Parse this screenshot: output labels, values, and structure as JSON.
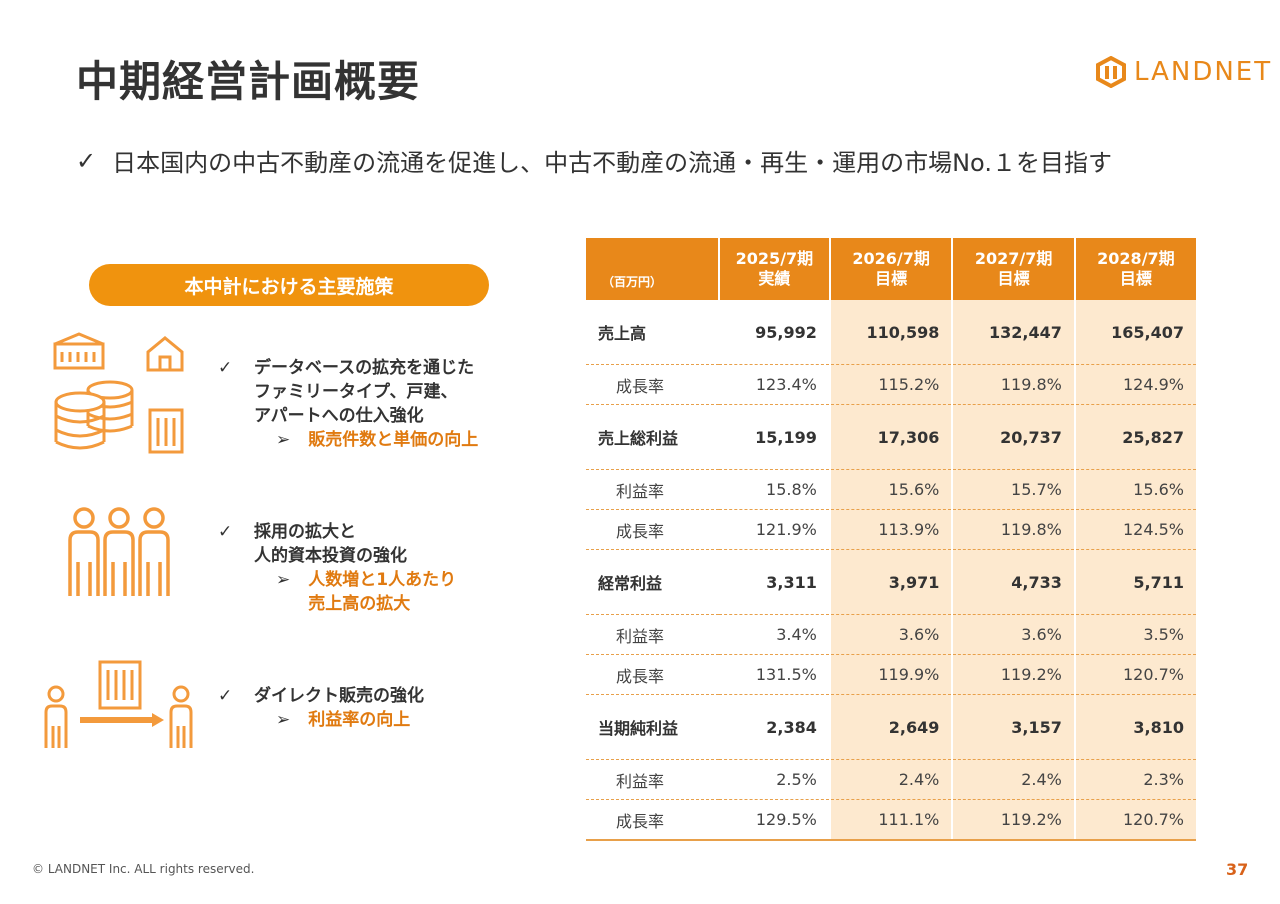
{
  "title": "中期経営計画概要",
  "logo": {
    "text": "LANDNET",
    "icon": "landnet-logo-icon"
  },
  "headline": {
    "icon": "check-icon",
    "text": "日本国内の中古不動産の流通を促進し、中古不動産の流通・再生・運用の市場No.１を目指す"
  },
  "measures": {
    "title": "本中計における主要施策",
    "items": [
      {
        "lines": [
          "データベースの拡充を通じた",
          "ファミリータイプ、戸建、",
          "アパートへの仕入強化"
        ],
        "result": [
          "販売件数と単価の向上"
        ],
        "icon": "database-houses-icon"
      },
      {
        "lines": [
          "採用の拡大と",
          "人的資本投資の強化"
        ],
        "result": [
          "人数増と1人あたり",
          "売上高の拡大"
        ],
        "icon": "people-icon"
      },
      {
        "lines": [
          "ダイレクト販売の強化"
        ],
        "result": [
          "利益率の向上"
        ],
        "icon": "direct-sales-icon"
      }
    ]
  },
  "table": {
    "unit": "（百万円）",
    "columns": [
      {
        "period": "2025/7期",
        "type": "実績"
      },
      {
        "period": "2026/7期",
        "type": "目標"
      },
      {
        "period": "2027/7期",
        "type": "目標"
      },
      {
        "period": "2028/7期",
        "type": "目標"
      }
    ],
    "rows": [
      {
        "kind": "main",
        "label": "売上高",
        "values": [
          "95,992",
          "110,598",
          "132,447",
          "165,407"
        ]
      },
      {
        "kind": "rate",
        "label": "成長率",
        "values": [
          "123.4%",
          "115.2%",
          "119.8%",
          "124.9%"
        ]
      },
      {
        "kind": "main",
        "label": "売上総利益",
        "values": [
          "15,199",
          "17,306",
          "20,737",
          "25,827"
        ]
      },
      {
        "kind": "rate",
        "label": "利益率",
        "values": [
          "15.8%",
          "15.6%",
          "15.7%",
          "15.6%"
        ]
      },
      {
        "kind": "rate",
        "label": "成長率",
        "values": [
          "121.9%",
          "113.9%",
          "119.8%",
          "124.5%"
        ]
      },
      {
        "kind": "main",
        "label": "経常利益",
        "values": [
          "3,311",
          "3,971",
          "4,733",
          "5,711"
        ]
      },
      {
        "kind": "rate",
        "label": "利益率",
        "values": [
          "3.4%",
          "3.6%",
          "3.6%",
          "3.5%"
        ]
      },
      {
        "kind": "rate",
        "label": "成長率",
        "values": [
          "131.5%",
          "119.9%",
          "119.2%",
          "120.7%"
        ]
      },
      {
        "kind": "main",
        "label": "当期純利益",
        "values": [
          "2,384",
          "2,649",
          "3,157",
          "3,810"
        ]
      },
      {
        "kind": "rate",
        "label": "利益率",
        "values": [
          "2.5%",
          "2.4%",
          "2.4%",
          "2.3%"
        ]
      },
      {
        "kind": "rate",
        "label": "成長率",
        "values": [
          "129.5%",
          "111.1%",
          "119.2%",
          "120.7%"
        ]
      }
    ]
  },
  "footer": "© LANDNET Inc. ALL rights reserved.",
  "page_number": "37",
  "colors": {
    "accent": "#e8881a",
    "pill": "#f0930e",
    "target_fill": "#fde9cf",
    "highlight_text": "#e07a10",
    "icon": "#f39a3c"
  }
}
